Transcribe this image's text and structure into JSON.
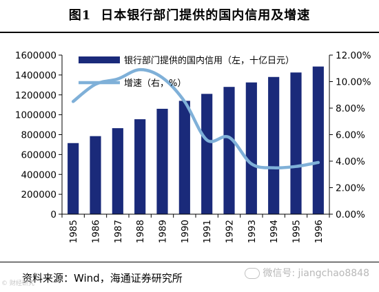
{
  "figure": {
    "number": "图1",
    "title": "日本银行部门提供的国内信用及增速"
  },
  "source": "资料来源：Wind，海通证券研究所",
  "watermark": {
    "text": "微信号: jiangchao8848",
    "icon": "wechat-icon",
    "left_text": "© 财经研究"
  },
  "colors": {
    "bar": "#1a2a7a",
    "line": "#7fb0d8",
    "axis": "#000000"
  },
  "chart_data": {
    "type": "bar",
    "categories": [
      "1985",
      "1986",
      "1987",
      "1988",
      "1989",
      "1990",
      "1991",
      "1992",
      "1993",
      "1994",
      "1995",
      "1996"
    ],
    "series": [
      {
        "name": "银行部门提供的国内信用（左，十亿日元）",
        "type": "bar",
        "axis": "left",
        "values": [
          715000,
          785000,
          865000,
          955000,
          1060000,
          1140000,
          1210000,
          1280000,
          1325000,
          1380000,
          1425000,
          1485000
        ]
      },
      {
        "name": "增速（右，%）",
        "type": "line",
        "axis": "right",
        "values": [
          8.5,
          9.8,
          10.2,
          10.9,
          10.3,
          8.5,
          5.6,
          5.8,
          3.8,
          3.5,
          3.6,
          3.9
        ]
      }
    ],
    "y_left": {
      "min": 0,
      "max": 1600000,
      "ticks": [
        "0",
        "200000",
        "400000",
        "600000",
        "800000",
        "1000000",
        "1200000",
        "1400000",
        "1600000"
      ]
    },
    "y_right": {
      "min": 0,
      "max": 12,
      "ticks": [
        "0.00%",
        "2.00%",
        "4.00%",
        "6.00%",
        "8.00%",
        "10.00%",
        "12.00%"
      ]
    },
    "legend_position": "top-center",
    "grid": false
  }
}
